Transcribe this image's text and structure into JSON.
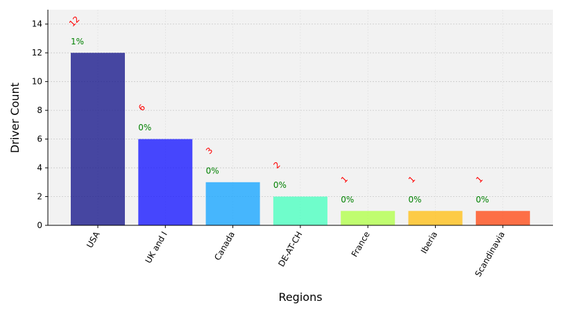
{
  "chart_data": {
    "type": "bar",
    "categories": [
      "USA",
      "UK and I",
      "Canada",
      "DE-AT-CH",
      "France",
      "Iberia",
      "Scandinavia"
    ],
    "values": [
      12,
      6,
      3,
      2,
      1,
      1,
      1
    ],
    "value_labels": [
      "12",
      "6",
      "3",
      "2",
      "1",
      "1",
      "1"
    ],
    "percent_labels": [
      "1%",
      "0%",
      "0%",
      "0%",
      "0%",
      "0%",
      "0%"
    ],
    "colors": [
      "#1a1a8c",
      "#1a1aff",
      "#1aa6ff",
      "#4dffc0",
      "#b3ff4d",
      "#ffc01a",
      "#ff4d1a"
    ],
    "bar_opacity": 0.8,
    "xlabel": "Regions",
    "ylabel": "Driver Count",
    "ylim": [
      0,
      15
    ],
    "yticks": [
      0,
      2,
      4,
      6,
      8,
      10,
      12,
      14
    ],
    "grid": true,
    "plot_background": "#f2f2f2",
    "value_label_color": "#ff0000",
    "percent_label_color": "#008000"
  }
}
